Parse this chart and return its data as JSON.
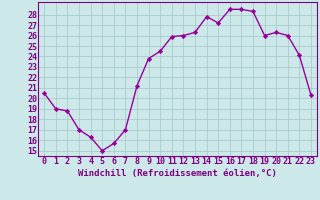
{
  "hours": [
    0,
    1,
    2,
    3,
    4,
    5,
    6,
    7,
    8,
    9,
    10,
    11,
    12,
    13,
    14,
    15,
    16,
    17,
    18,
    19,
    20,
    21,
    22,
    23
  ],
  "values": [
    20.5,
    19.0,
    18.8,
    17.0,
    16.3,
    15.0,
    15.7,
    17.0,
    21.2,
    23.8,
    24.5,
    25.9,
    26.0,
    26.3,
    27.8,
    27.2,
    28.5,
    28.5,
    28.3,
    26.0,
    26.3,
    26.0,
    24.1,
    20.3
  ],
  "line_color": "#990099",
  "marker": "D",
  "marker_size": 2.2,
  "bg_color": "#cce8e8",
  "grid_color": "#aacccc",
  "xlabel": "Windchill (Refroidissement éolien,°C)",
  "ylabel_ticks": [
    15,
    16,
    17,
    18,
    19,
    20,
    21,
    22,
    23,
    24,
    25,
    26,
    27,
    28
  ],
  "ylim": [
    14.5,
    29.2
  ],
  "xlim": [
    -0.5,
    23.5
  ],
  "xlabel_fontsize": 6.5,
  "tick_fontsize": 6.0,
  "line_width": 1.0,
  "label_color": "#800080",
  "spine_color": "#800080"
}
